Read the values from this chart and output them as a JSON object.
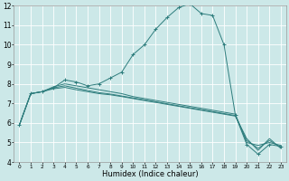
{
  "xlabel": "Humidex (Indice chaleur)",
  "ylabel": "",
  "xlim": [
    -0.5,
    23.5
  ],
  "ylim": [
    4,
    12
  ],
  "yticks": [
    4,
    5,
    6,
    7,
    8,
    9,
    10,
    11,
    12
  ],
  "xticks": [
    0,
    1,
    2,
    3,
    4,
    5,
    6,
    7,
    8,
    9,
    10,
    11,
    12,
    13,
    14,
    15,
    16,
    17,
    18,
    19,
    20,
    21,
    22,
    23
  ],
  "bg_color": "#cce8e8",
  "line_color": "#2e7d7d",
  "grid_color": "#ffffff",
  "curves": [
    {
      "x": [
        0,
        1,
        2,
        3,
        4,
        5,
        6,
        7,
        8,
        9,
        10,
        11,
        12,
        13,
        14,
        15,
        16,
        17,
        18,
        19,
        20,
        21,
        22,
        23
      ],
      "y": [
        5.9,
        7.5,
        7.6,
        7.8,
        8.2,
        8.1,
        7.9,
        8.0,
        8.3,
        8.6,
        9.5,
        10.0,
        10.8,
        11.4,
        11.9,
        12.1,
        11.6,
        11.5,
        10.0,
        6.4,
        4.9,
        4.4,
        4.9,
        4.8
      ],
      "marker": true
    },
    {
      "x": [
        0,
        1,
        2,
        3,
        4,
        5,
        6,
        7,
        8,
        9,
        10,
        11,
        12,
        13,
        14,
        15,
        16,
        17,
        18,
        19,
        20,
        21,
        22,
        23
      ],
      "y": [
        5.9,
        7.5,
        7.6,
        7.85,
        8.0,
        7.9,
        7.8,
        7.7,
        7.6,
        7.5,
        7.35,
        7.25,
        7.15,
        7.05,
        6.95,
        6.85,
        6.75,
        6.65,
        6.55,
        6.45,
        5.0,
        4.85,
        5.0,
        4.85
      ],
      "marker": false
    },
    {
      "x": [
        0,
        1,
        2,
        3,
        4,
        5,
        6,
        7,
        8,
        9,
        10,
        11,
        12,
        13,
        14,
        15,
        16,
        17,
        18,
        19,
        20,
        21,
        22,
        23
      ],
      "y": [
        5.9,
        7.5,
        7.6,
        7.8,
        7.9,
        7.78,
        7.66,
        7.55,
        7.48,
        7.38,
        7.28,
        7.18,
        7.08,
        6.98,
        6.88,
        6.78,
        6.68,
        6.58,
        6.48,
        6.38,
        5.1,
        4.7,
        5.1,
        4.75
      ],
      "marker": false
    },
    {
      "x": [
        0,
        1,
        2,
        3,
        4,
        5,
        6,
        7,
        8,
        9,
        10,
        11,
        12,
        13,
        14,
        15,
        16,
        17,
        18,
        19,
        20,
        21,
        22,
        23
      ],
      "y": [
        5.9,
        7.5,
        7.6,
        7.75,
        7.82,
        7.7,
        7.6,
        7.5,
        7.44,
        7.35,
        7.25,
        7.15,
        7.05,
        6.95,
        6.85,
        6.75,
        6.65,
        6.55,
        6.45,
        6.35,
        5.2,
        4.6,
        5.2,
        4.7
      ],
      "marker": false
    }
  ]
}
